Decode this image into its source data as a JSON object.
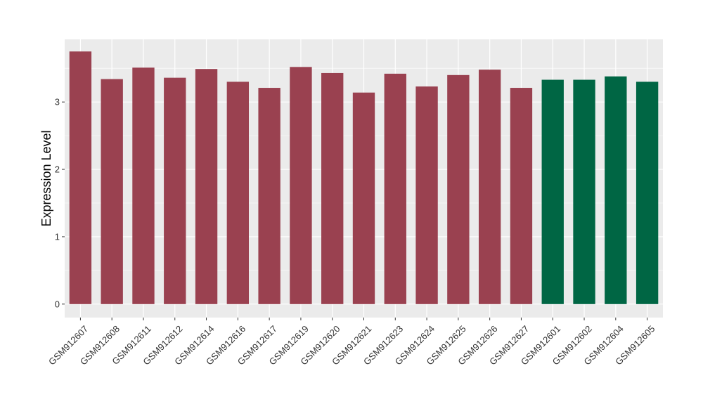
{
  "chart_data": {
    "type": "bar",
    "title": "",
    "xlabel": "",
    "ylabel": "Expression Level",
    "ylim": [
      -0.2,
      3.93
    ],
    "yticks": [
      "0",
      "1",
      "2",
      "3"
    ],
    "grid": true,
    "categories": [
      "GSM912607",
      "GSM912608",
      "GSM912611",
      "GSM912612",
      "GSM912614",
      "GSM912616",
      "GSM912617",
      "GSM912619",
      "GSM912620",
      "GSM912621",
      "GSM912623",
      "GSM912624",
      "GSM912625",
      "GSM912626",
      "GSM912627",
      "GSM912601",
      "GSM912602",
      "GSM912604",
      "GSM912605"
    ],
    "values": [
      3.75,
      3.34,
      3.51,
      3.36,
      3.49,
      3.3,
      3.21,
      3.52,
      3.43,
      3.14,
      3.42,
      3.23,
      3.4,
      3.48,
      3.21,
      3.33,
      3.33,
      3.38,
      3.3
    ],
    "bar_colors": [
      "#9a4150",
      "#9a4150",
      "#9a4150",
      "#9a4150",
      "#9a4150",
      "#9a4150",
      "#9a4150",
      "#9a4150",
      "#9a4150",
      "#9a4150",
      "#9a4150",
      "#9a4150",
      "#9a4150",
      "#9a4150",
      "#9a4150",
      "#006644",
      "#006644",
      "#006644",
      "#006644"
    ],
    "panel_color": "#ebebeb",
    "gridline_color": "#ffffff"
  }
}
